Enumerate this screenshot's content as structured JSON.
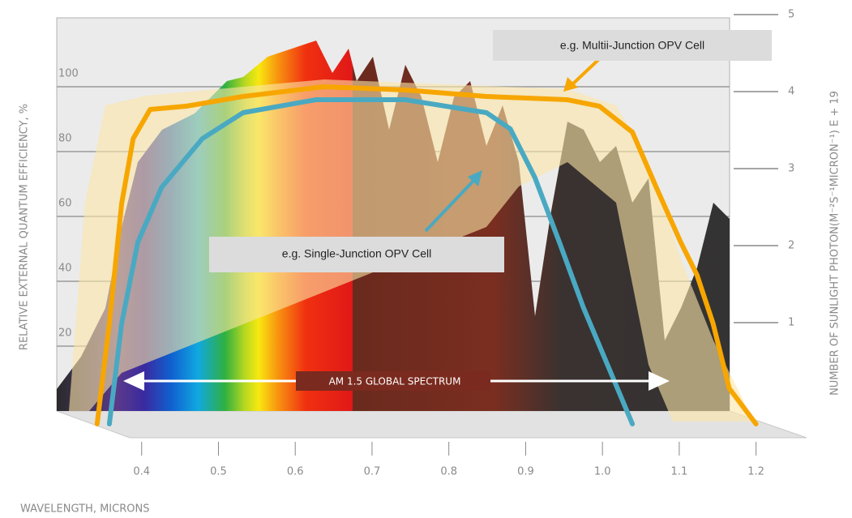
{
  "chart_data": {
    "type": "line",
    "x_label": "WAVELENGTH, MICRONS",
    "y_label": "RELATIVE EXTERNAL QUANTUM EFFICIENCY, %",
    "y2_label": "NUMBER OF SUNLIGHT PHOTON(M⁻²S⁻¹MICRON⁻¹) E + 19",
    "annotations": [
      "AM 1.5 GLOBAL SPECTRUM"
    ],
    "xlim": [
      0.3,
      1.25
    ],
    "xticks": [
      0.4,
      0.5,
      0.6,
      0.7,
      0.8,
      0.9,
      {
        "value": 1,
        "label": "1.0"
      },
      1.1,
      1.2
    ],
    "ylim": [
      -6,
      121
    ],
    "yticks": [
      20,
      40,
      60,
      80,
      100
    ],
    "y2lim": [
      0,
      5
    ],
    "y2ticks": [
      1,
      2,
      3,
      4,
      5
    ],
    "grid": true,
    "series": [
      {
        "name": "e.g. Multii-Junction OPV Cell",
        "color": "#f7a600",
        "x": [
          0.342,
          0.358,
          0.374,
          0.389,
          0.411,
          0.458,
          0.532,
          0.637,
          0.743,
          0.849,
          0.954,
          0.996,
          1.039,
          1.07,
          1.102,
          1.123,
          1.144,
          1.165,
          1.2
        ],
        "values": [
          -4,
          27,
          64,
          84,
          93,
          94,
          97,
          100,
          99,
          97,
          96,
          94,
          86,
          69,
          52,
          42,
          27,
          7,
          -4
        ]
      },
      {
        "name": "e.g. Single-Junction OPV Cell",
        "color": "#4aa9c2",
        "x": [
          0.358,
          0.374,
          0.395,
          0.426,
          0.479,
          0.532,
          0.627,
          0.743,
          0.849,
          0.88,
          0.912,
          0.944,
          0.975,
          1.007,
          1.039
        ],
        "values": [
          -4,
          27,
          52,
          69,
          84,
          92,
          96,
          96,
          92,
          87,
          72,
          52,
          32,
          14,
          -4
        ]
      }
    ]
  }
}
